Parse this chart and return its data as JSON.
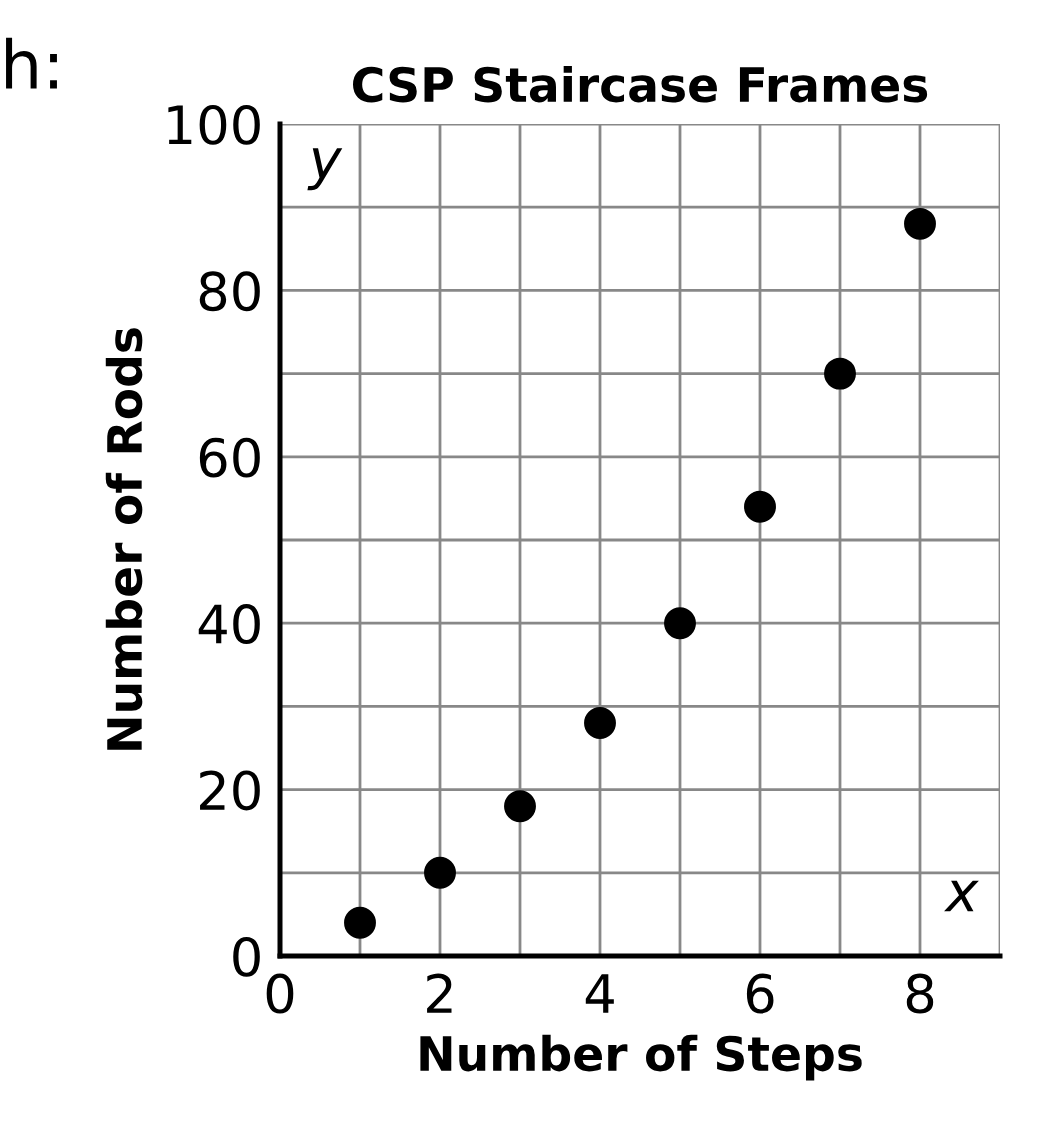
{
  "chart_data": {
    "type": "scatter",
    "title": "CSP Staircase Frames",
    "xlabel": "Number of Steps",
    "ylabel": "Number of Rods",
    "annotations": [
      "h:",
      "x",
      "y"
    ],
    "x": [
      1,
      2,
      3,
      4,
      5,
      6,
      7,
      8
    ],
    "series": [
      {
        "color": "#000000",
        "values": [
          4,
          10,
          18,
          28,
          40,
          54,
          70,
          88
        ]
      }
    ],
    "xlim": [
      0,
      9
    ],
    "ylim": [
      0,
      100
    ],
    "xticks": [
      0,
      2,
      4,
      6,
      8
    ],
    "yticks": [
      0,
      20,
      40,
      60,
      80,
      100
    ],
    "grid": true,
    "marker": "circle"
  }
}
